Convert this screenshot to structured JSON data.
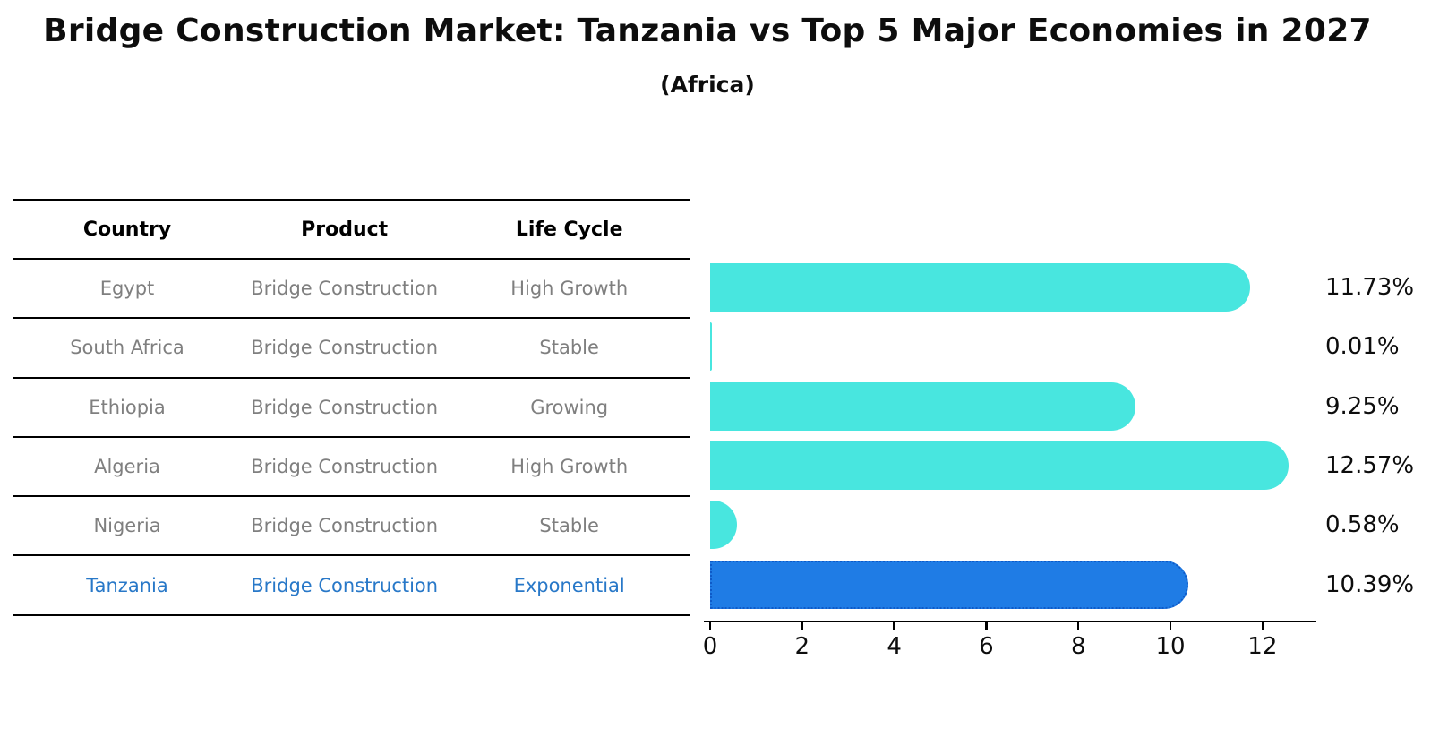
{
  "title": "Bridge Construction Market: Tanzania vs Top 5 Major Economies in 2027",
  "subtitle": "(Africa)",
  "table": {
    "headers": [
      "Country",
      "Product",
      "Life Cycle"
    ],
    "rows": [
      {
        "country": "Egypt",
        "product": "Bridge Construction",
        "life_cycle": "High Growth",
        "highlight": false
      },
      {
        "country": "South Africa",
        "product": "Bridge Construction",
        "life_cycle": "Stable",
        "highlight": false
      },
      {
        "country": "Ethiopia",
        "product": "Bridge Construction",
        "life_cycle": "Growing",
        "highlight": false
      },
      {
        "country": "Algeria",
        "product": "Bridge Construction",
        "life_cycle": "High Growth",
        "highlight": false
      },
      {
        "country": "Nigeria",
        "product": "Bridge Construction",
        "life_cycle": "Stable",
        "highlight": false
      },
      {
        "country": "Tanzania",
        "product": "Bridge Construction",
        "life_cycle": "Exponential",
        "highlight": true
      }
    ]
  },
  "chart_data": {
    "type": "bar",
    "orientation": "horizontal",
    "title": "Bridge Construction Market: Tanzania vs Top 5 Major Economies in 2027 (Africa)",
    "categories": [
      "Egypt",
      "South Africa",
      "Ethiopia",
      "Algeria",
      "Nigeria",
      "Tanzania"
    ],
    "values": [
      11.73,
      0.01,
      9.25,
      12.57,
      0.58,
      10.39
    ],
    "value_labels": [
      "11.73%",
      "0.01%",
      "9.25%",
      "12.57%",
      "0.58%",
      "10.39%"
    ],
    "xticks": [
      0,
      2,
      4,
      6,
      8,
      10,
      12
    ],
    "xlim": [
      0,
      13.17
    ],
    "grid": false,
    "legend": false,
    "highlight_index": 5,
    "bar_color": "#48e6df",
    "highlight_color": "#1f7ce5"
  },
  "colors": {
    "bar": "#48e6df",
    "highlight_bar": "#1f7ce5",
    "highlight_bar_border": "#0e5ac8",
    "highlight_text": "#2878c8",
    "row_text": "#7f7f7f",
    "axis": "#000000"
  }
}
